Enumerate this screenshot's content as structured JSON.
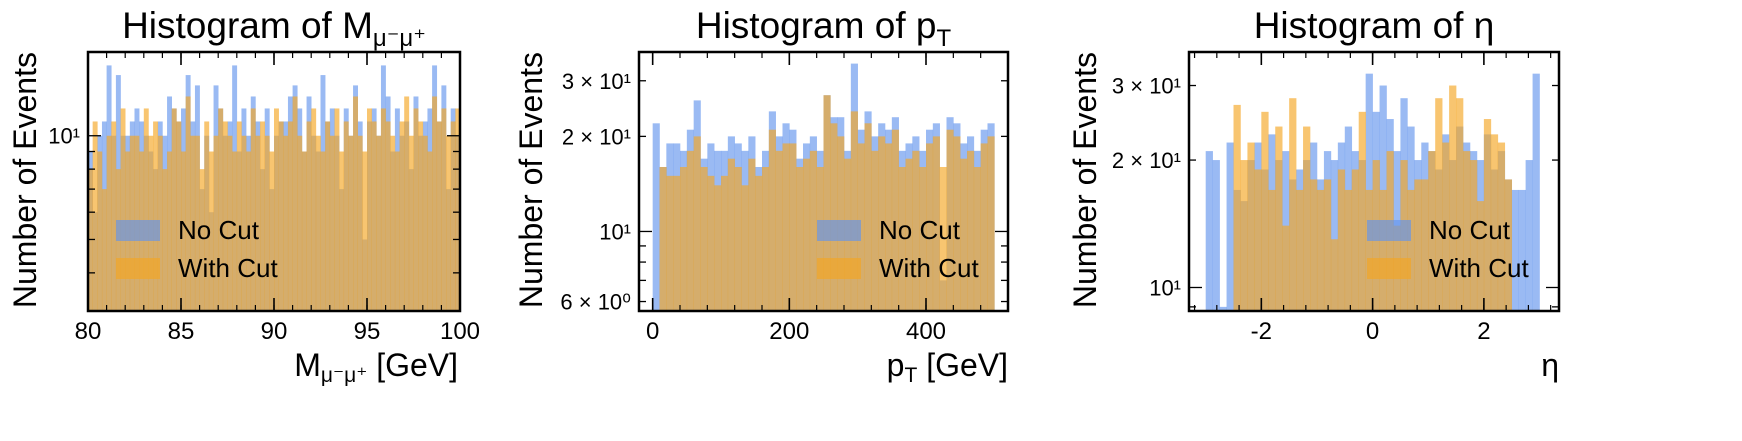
{
  "chart_data": [
    {
      "type": "histogram",
      "title": "Histogram of M",
      "title_sub": "μ⁻μ⁺",
      "xlabel": "M",
      "xlabel_sub": "μ⁻μ⁺",
      "xlabel_unit": " [GeV]",
      "ylabel": "Number of Events",
      "xlim": [
        80,
        100
      ],
      "ylim": [
        3.1,
        17.5
      ],
      "yscale": "log",
      "xticks": [
        80,
        85,
        90,
        95,
        100
      ],
      "yticks": [
        {
          "value": 10,
          "label": "10¹"
        }
      ],
      "legend": {
        "position": "lower-left",
        "entries": [
          "No Cut",
          "With Cut"
        ]
      },
      "bin_start": 80,
      "bin_width": 0.25,
      "series": [
        {
          "name": "No Cut",
          "color": "#6495ED",
          "values": [
            9,
            6,
            10,
            11,
            16,
            10,
            15,
            10,
            10,
            11,
            12,
            11,
            10,
            9,
            8,
            11,
            10,
            13,
            12,
            11,
            12,
            15,
            11,
            14,
            7,
            10,
            6,
            14,
            12,
            10,
            11,
            16,
            9,
            12,
            10,
            13,
            11,
            8,
            12,
            7,
            10,
            11,
            11,
            13,
            14,
            12,
            9,
            13,
            10,
            9,
            15,
            11,
            12,
            10,
            7,
            12,
            10,
            14,
            11,
            5,
            11,
            12,
            10,
            16,
            13,
            9,
            12,
            10,
            11,
            8,
            13,
            10,
            11,
            12,
            16,
            11,
            14,
            7,
            12,
            10
          ]
        },
        {
          "name": "With Cut",
          "color": "#F5A623",
          "values": [
            8,
            11,
            9,
            7,
            10,
            11,
            8,
            12,
            9,
            10,
            10,
            9,
            12,
            10,
            11,
            10,
            8,
            9,
            12,
            11,
            9,
            13,
            10,
            10,
            8,
            11,
            9,
            10,
            12,
            11,
            10,
            9,
            11,
            10,
            9,
            12,
            10,
            11,
            10,
            9,
            12,
            11,
            10,
            11,
            13,
            10,
            9,
            11,
            12,
            10,
            9,
            11,
            10,
            12,
            9,
            11,
            10,
            13,
            10,
            9,
            12,
            11,
            10,
            12,
            11,
            10,
            9,
            11,
            13,
            10,
            12,
            11,
            10,
            9,
            13,
            11,
            12,
            10,
            11,
            12
          ]
        }
      ]
    },
    {
      "type": "histogram",
      "title": "Histogram of p",
      "title_sub": "T",
      "xlabel": "p",
      "xlabel_sub": "T",
      "xlabel_unit": " [GeV]",
      "ylabel": "Number of Events",
      "xlim": [
        -20,
        520
      ],
      "ylim": [
        5.6,
        37
      ],
      "yscale": "log",
      "xticks": [
        0,
        200,
        400
      ],
      "yticks": [
        {
          "value": 6,
          "label": "6 × 10⁰"
        },
        {
          "value": 10,
          "label": "10¹"
        },
        {
          "value": 20,
          "label": "2 × 10¹"
        },
        {
          "value": 30,
          "label": "3 × 10¹"
        }
      ],
      "legend": {
        "position": "lower-right",
        "entries": [
          "No Cut",
          "With Cut"
        ]
      },
      "bin_start": 0,
      "bin_width": 10,
      "series": [
        {
          "name": "No Cut",
          "color": "#6495ED",
          "values": [
            22,
            16,
            19,
            19,
            18,
            21,
            26,
            17,
            19,
            18,
            18,
            20,
            19,
            18,
            20,
            16,
            18,
            24,
            20,
            22,
            21,
            17,
            19,
            20,
            18,
            27,
            23,
            23,
            18,
            34,
            21,
            24,
            20,
            22,
            21,
            23,
            18,
            19,
            20,
            18,
            21,
            22,
            7,
            23,
            22,
            19,
            20,
            18,
            21,
            22
          ]
        },
        {
          "name": "With Cut",
          "color": "#F5A623",
          "values": [
            0,
            16,
            15,
            15,
            16,
            18,
            20,
            16,
            15,
            14,
            15,
            17,
            16,
            14,
            17,
            15,
            16,
            21,
            18,
            19,
            19,
            16,
            17,
            18,
            16,
            27,
            22,
            20,
            17,
            24,
            19,
            22,
            18,
            20,
            19,
            21,
            16,
            17,
            18,
            16,
            19,
            20,
            16,
            21,
            20,
            17,
            18,
            16,
            19,
            20
          ]
        }
      ]
    },
    {
      "type": "histogram",
      "title": "Histogram of η",
      "xlabel": "η",
      "ylabel": "Number of Events",
      "xlim": [
        -3.3,
        3.35
      ],
      "ylim": [
        8.8,
        36
      ],
      "yscale": "log",
      "xticks": [
        {
          "value": -2,
          "label": "-2"
        },
        {
          "value": 0,
          "label": "0"
        },
        {
          "value": 2,
          "label": "2"
        }
      ],
      "yticks": [
        {
          "value": 10,
          "label": "10¹"
        },
        {
          "value": 20,
          "label": "2 × 10¹"
        },
        {
          "value": 30,
          "label": "3 × 10¹"
        }
      ],
      "legend": {
        "position": "lower-right",
        "entries": [
          "No Cut",
          "With Cut"
        ]
      },
      "bin_start": -3.0,
      "bin_width": 0.125,
      "series": [
        {
          "name": "No Cut",
          "color": "#6495ED",
          "values": [
            21,
            20,
            9,
            22,
            17,
            16,
            20,
            22,
            19,
            23,
            20,
            21,
            18,
            19,
            20,
            22,
            18,
            21,
            20,
            22,
            24,
            21,
            20,
            32,
            26,
            30,
            25,
            21,
            28,
            24,
            20,
            22,
            21,
            19,
            23,
            20,
            24,
            22,
            21,
            20,
            23,
            19,
            21,
            18,
            17,
            17,
            20,
            32
          ]
        },
        {
          "name": "With Cut",
          "color": "#F5A623",
          "values": [
            0,
            0,
            0,
            0,
            27,
            20,
            22,
            19,
            26,
            17,
            24,
            14,
            28,
            17,
            24,
            18,
            17,
            18,
            13,
            19,
            17,
            19,
            26,
            17,
            20,
            17,
            21,
            14,
            20,
            17,
            18,
            18,
            21,
            28,
            22,
            30,
            28,
            21,
            20,
            16,
            25,
            23,
            22,
            18,
            0,
            0,
            0,
            0
          ]
        }
      ]
    }
  ]
}
